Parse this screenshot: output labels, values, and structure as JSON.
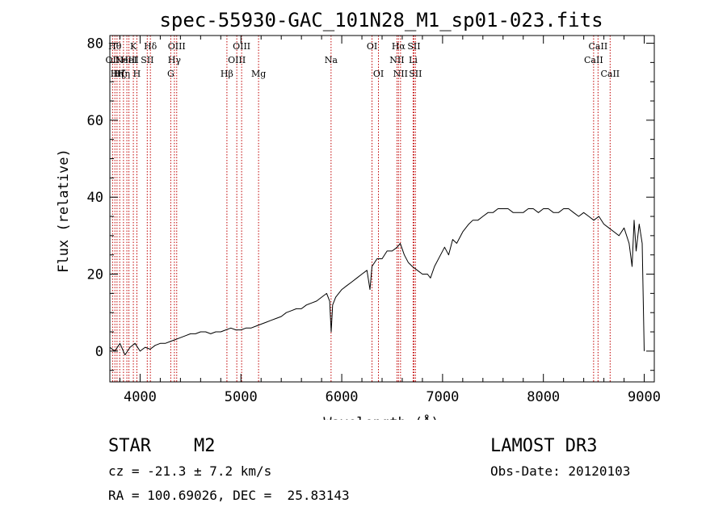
{
  "chart_data": {
    "type": "line",
    "title": "spec-55930-GAC_101N28_M1_sp01-023.fits",
    "xlabel": "Wavelength (Å)",
    "ylabel": "Flux (relative)",
    "xlim": [
      3700,
      9100
    ],
    "ylim": [
      -8,
      82
    ],
    "xticks": [
      4000,
      5000,
      6000,
      7000,
      8000,
      9000
    ],
    "yticks": [
      0,
      20,
      40,
      60,
      80
    ],
    "grid": false,
    "series": [
      {
        "name": "flux",
        "color": "#000000",
        "x": [
          3700,
          3750,
          3800,
          3850,
          3900,
          3950,
          4000,
          4050,
          4100,
          4150,
          4200,
          4250,
          4300,
          4350,
          4400,
          4450,
          4500,
          4550,
          4600,
          4650,
          4700,
          4750,
          4800,
          4850,
          4900,
          4950,
          5000,
          5050,
          5100,
          5150,
          5200,
          5250,
          5300,
          5350,
          5400,
          5450,
          5500,
          5550,
          5600,
          5650,
          5700,
          5750,
          5800,
          5850,
          5880,
          5895,
          5910,
          5940,
          6000,
          6050,
          6100,
          6150,
          6200,
          6250,
          6280,
          6300,
          6350,
          6400,
          6450,
          6500,
          6550,
          6580,
          6620,
          6660,
          6700,
          6750,
          6800,
          6850,
          6880,
          6920,
          6980,
          7020,
          7060,
          7100,
          7140,
          7200,
          7260,
          7300,
          7350,
          7400,
          7450,
          7500,
          7550,
          7600,
          7650,
          7700,
          7750,
          7800,
          7850,
          7900,
          7950,
          8000,
          8050,
          8100,
          8150,
          8200,
          8250,
          8300,
          8350,
          8400,
          8450,
          8500,
          8550,
          8600,
          8650,
          8700,
          8750,
          8800,
          8850,
          8880,
          8900,
          8920,
          8950,
          8980,
          9000
        ],
        "y": [
          1,
          0,
          2,
          -1,
          1,
          2,
          0,
          1,
          0.5,
          1.5,
          2,
          2,
          2.5,
          3,
          3.5,
          4,
          4.5,
          4.5,
          5,
          5,
          4.5,
          5,
          5,
          5.5,
          6,
          5.5,
          5.5,
          6,
          6,
          6.5,
          7,
          7.5,
          8,
          8.5,
          9,
          10,
          10.5,
          11,
          11,
          12,
          12.5,
          13,
          14,
          15,
          13,
          5,
          12,
          14,
          16,
          17,
          18,
          19,
          20,
          21,
          16,
          22,
          24,
          24,
          26,
          26,
          27,
          28,
          25,
          23,
          22,
          21,
          20,
          20,
          19,
          22,
          25,
          27,
          25,
          29,
          28,
          31,
          33,
          34,
          34,
          35,
          36,
          36,
          37,
          37,
          37,
          36,
          36,
          36,
          37,
          37,
          36,
          37,
          37,
          36,
          36,
          37,
          37,
          36,
          35,
          36,
          35,
          34,
          35,
          33,
          32,
          31,
          30,
          32,
          28,
          22,
          34,
          26,
          33,
          28,
          0
        ]
      }
    ],
    "lines": [
      {
        "wavelength": 3727,
        "label": "OII",
        "row": 2
      },
      {
        "wavelength": 3750,
        "label": "Hθ",
        "row": 1
      },
      {
        "wavelength": 3771,
        "label": "Hη",
        "row": 3
      },
      {
        "wavelength": 3798,
        "label": "Hζ",
        "row": 3
      },
      {
        "wavelength": 3835,
        "label": "Hη",
        "row": 3
      },
      {
        "wavelength": 3869,
        "label": "NeIII",
        "row": 2
      },
      {
        "wavelength": 3889,
        "label": "HeI",
        "row": 2
      },
      {
        "wavelength": 3933,
        "label": "K",
        "row": 1
      },
      {
        "wavelength": 3968,
        "label": "H",
        "row": 3
      },
      {
        "wavelength": 4071,
        "label": "SII",
        "row": 2
      },
      {
        "wavelength": 4102,
        "label": "Hδ",
        "row": 1
      },
      {
        "wavelength": 4304,
        "label": "G",
        "row": 3
      },
      {
        "wavelength": 4340,
        "label": "Hγ",
        "row": 2
      },
      {
        "wavelength": 4363,
        "label": "OIII",
        "row": 1
      },
      {
        "wavelength": 4861,
        "label": "Hβ",
        "row": 3
      },
      {
        "wavelength": 4959,
        "label": "OIII",
        "row": 2
      },
      {
        "wavelength": 5007,
        "label": "OIII",
        "row": 1
      },
      {
        "wavelength": 5175,
        "label": "Mg",
        "row": 3
      },
      {
        "wavelength": 5894,
        "label": "Na",
        "row": 2
      },
      {
        "wavelength": 6300,
        "label": "OI",
        "row": 1
      },
      {
        "wavelength": 6364,
        "label": "OI",
        "row": 3
      },
      {
        "wavelength": 6548,
        "label": "NII",
        "row": 2
      },
      {
        "wavelength": 6563,
        "label": "Hα",
        "row": 1
      },
      {
        "wavelength": 6583,
        "label": "NII",
        "row": 3
      },
      {
        "wavelength": 6708,
        "label": "Li",
        "row": 2
      },
      {
        "wavelength": 6716,
        "label": "SII",
        "row": 1
      },
      {
        "wavelength": 6731,
        "label": "SII",
        "row": 3
      },
      {
        "wavelength": 8498,
        "label": "CaII",
        "row": 2
      },
      {
        "wavelength": 8542,
        "label": "CaII",
        "row": 1
      },
      {
        "wavelength": 8662,
        "label": "CaII",
        "row": 3
      }
    ]
  },
  "footer": {
    "class": "STAR",
    "subclass": "M2",
    "survey": "LAMOST DR3",
    "redshift": "cz = -21.3 ± 7.2 km/s",
    "obs_date": "Obs-Date: 20120103",
    "coords": "RA = 100.69026, DEC =  25.83143"
  },
  "colors": {
    "line_marker": "#c00000",
    "spectrum": "#000000"
  }
}
